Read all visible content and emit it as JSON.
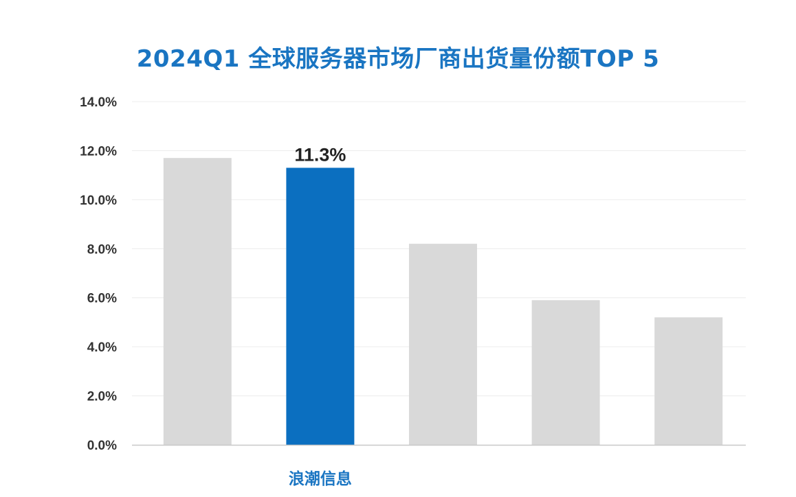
{
  "colors": {
    "highlight": "#0b6fc0",
    "default_bar": "#d9d9d9",
    "title": "#1a75c2",
    "gridline": "#ececec",
    "baseline": "#c8c8c8"
  },
  "chart_data": {
    "type": "bar",
    "title": "2024Q1 全球服务器市场厂商出货量份额TOP 5",
    "xlabel": "",
    "ylabel": "",
    "ylim": [
      0,
      14
    ],
    "y_tick_values": [
      0,
      2,
      4,
      6,
      8,
      10,
      12,
      14
    ],
    "y_tick_labels": [
      "0.0%",
      "2.0%",
      "4.0%",
      "6.0%",
      "8.0%",
      "10.0%",
      "12.0%",
      "14.0%"
    ],
    "categories": [
      "",
      "浪潮信息",
      "",
      "",
      ""
    ],
    "values": [
      11.7,
      11.3,
      8.2,
      5.9,
      5.2
    ],
    "highlight_index": 1,
    "data_labels": [
      "",
      "11.3%",
      "",
      "",
      ""
    ],
    "grid": true,
    "legend": "none"
  }
}
